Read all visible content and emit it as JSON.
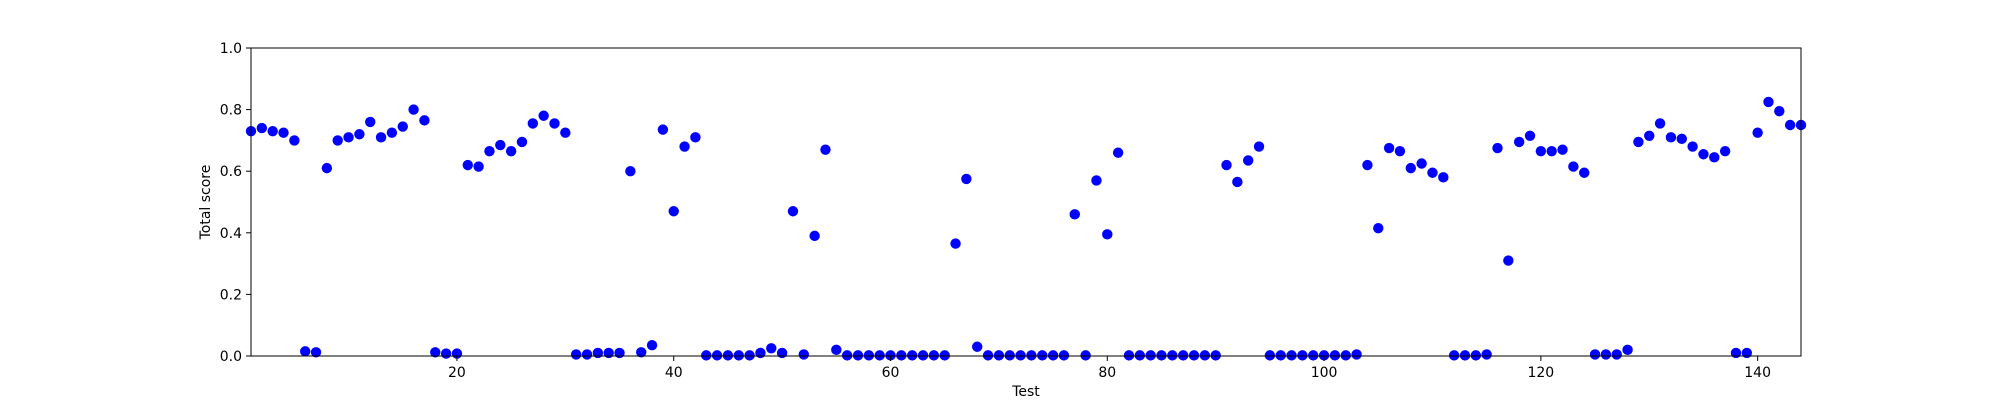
{
  "chart_data": {
    "type": "scatter",
    "xlabel": "Test",
    "ylabel": "Total score",
    "xlim": [
      1,
      144
    ],
    "ylim": [
      0.0,
      1.0
    ],
    "x_ticks": [
      20,
      40,
      60,
      80,
      100,
      120,
      140
    ],
    "y_ticks": [
      0.0,
      0.2,
      0.4,
      0.6,
      0.8,
      1.0
    ],
    "y_tick_labels": [
      "0.0",
      "0.2",
      "0.4",
      "0.6",
      "0.8",
      "1.0"
    ],
    "grid": false,
    "legend": "none",
    "marker_color": "#0000ff",
    "series": [
      {
        "x": [
          1,
          2,
          3,
          4,
          5,
          6,
          7,
          8,
          9,
          10,
          11,
          12,
          13,
          14,
          15,
          16,
          17,
          18,
          19,
          20,
          21,
          22,
          23,
          24,
          25,
          26,
          27,
          28,
          29,
          30,
          31,
          32,
          33,
          34,
          35,
          36,
          37,
          38,
          39,
          40,
          41,
          42,
          43,
          44,
          45,
          46,
          47,
          48,
          49,
          50,
          51,
          52,
          53,
          54,
          55,
          56,
          57,
          58,
          59,
          60,
          61,
          62,
          63,
          64,
          65,
          66,
          67,
          68,
          69,
          70,
          71,
          72,
          73,
          74,
          75,
          76,
          77,
          78,
          79,
          80,
          81,
          82,
          83,
          84,
          85,
          86,
          87,
          88,
          89,
          90,
          91,
          92,
          93,
          94,
          95,
          96,
          97,
          98,
          99,
          100,
          101,
          102,
          103,
          104,
          105,
          106,
          107,
          108,
          109,
          110,
          111,
          112,
          113,
          114,
          115,
          116,
          117,
          118,
          119,
          120,
          121,
          122,
          123,
          124,
          125,
          126,
          127,
          128,
          129,
          130,
          131,
          132,
          133,
          134,
          135,
          136,
          137,
          138,
          139,
          140,
          141,
          142,
          143,
          144
        ],
        "y": [
          0.73,
          0.74,
          0.73,
          0.725,
          0.7,
          0.015,
          0.012,
          0.61,
          0.7,
          0.71,
          0.72,
          0.76,
          0.71,
          0.725,
          0.745,
          0.8,
          0.765,
          0.012,
          0.008,
          0.008,
          0.62,
          0.615,
          0.665,
          0.685,
          0.665,
          0.695,
          0.755,
          0.78,
          0.755,
          0.725,
          0.005,
          0.005,
          0.01,
          0.01,
          0.01,
          0.6,
          0.012,
          0.035,
          0.735,
          0.47,
          0.68,
          0.71,
          0.002,
          0.002,
          0.002,
          0.002,
          0.002,
          0.01,
          0.025,
          0.01,
          0.47,
          0.005,
          0.39,
          0.67,
          0.02,
          0.002,
          0.002,
          0.002,
          0.002,
          0.002,
          0.002,
          0.002,
          0.002,
          0.002,
          0.002,
          0.365,
          0.575,
          0.03,
          0.002,
          0.002,
          0.002,
          0.002,
          0.002,
          0.002,
          0.002,
          0.002,
          0.46,
          0.002,
          0.57,
          0.395,
          0.66,
          0.002,
          0.002,
          0.002,
          0.002,
          0.002,
          0.002,
          0.002,
          0.002,
          0.002,
          0.62,
          0.565,
          0.635,
          0.68,
          0.002,
          0.002,
          0.002,
          0.002,
          0.002,
          0.002,
          0.002,
          0.002,
          0.005,
          0.62,
          0.415,
          0.675,
          0.665,
          0.61,
          0.625,
          0.595,
          0.58,
          0.002,
          0.002,
          0.002,
          0.005,
          0.675,
          0.31,
          0.695,
          0.715,
          0.665,
          0.665,
          0.67,
          0.615,
          0.595,
          0.005,
          0.005,
          0.005,
          0.02,
          0.695,
          0.715,
          0.755,
          0.71,
          0.705,
          0.68,
          0.655,
          0.645,
          0.665,
          0.01,
          0.01,
          0.725,
          0.825,
          0.795,
          0.75,
          0.75
        ]
      }
    ]
  }
}
